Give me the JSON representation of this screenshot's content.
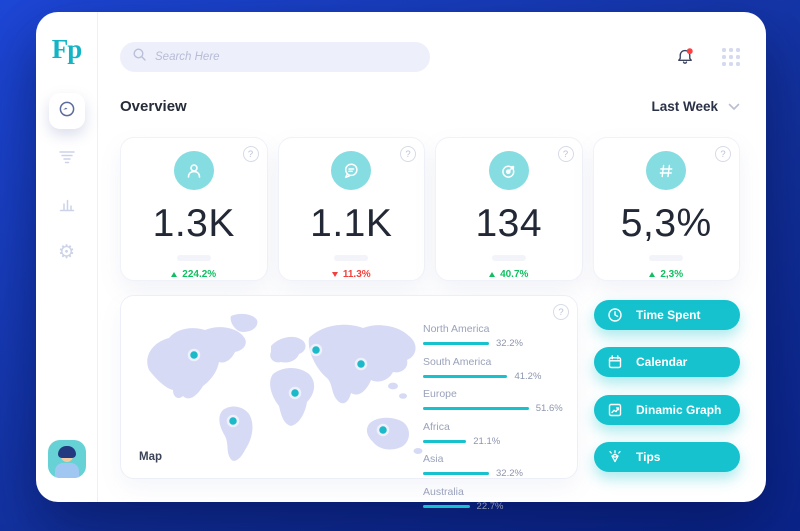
{
  "theme": {
    "bg_from": "#1d47d7",
    "bg_to": "#0a2489",
    "accent": "#15c2ce",
    "accent_light": "#85dce1",
    "green": "#0fbf61",
    "red": "#f4403c",
    "map_fill": "#d6daf5"
  },
  "sidebar": {
    "logo": "Fp",
    "items": [
      {
        "name": "dashboard",
        "active": true
      },
      {
        "name": "filter",
        "active": false
      },
      {
        "name": "analytics",
        "active": false
      },
      {
        "name": "settings",
        "active": false
      }
    ]
  },
  "topbar": {
    "search_placeholder": "Search Here"
  },
  "header": {
    "title": "Overview",
    "period": "Last Week"
  },
  "stats": [
    {
      "icon": "user-icon",
      "value": "1.3K",
      "change": "224.2%",
      "direction": "up"
    },
    {
      "icon": "chat-icon",
      "value": "1.1K",
      "change": "11.3%",
      "direction": "down"
    },
    {
      "icon": "target-icon",
      "value": "134",
      "change": "40.7%",
      "direction": "up"
    },
    {
      "icon": "hash-icon",
      "value": "5,3%",
      "change": "2,3%",
      "direction": "up"
    }
  ],
  "map": {
    "label": "Map",
    "regions": [
      {
        "name": "North America",
        "pct": 32.2,
        "pct_label": "32.2%"
      },
      {
        "name": "South America",
        "pct": 41.2,
        "pct_label": "41.2%"
      },
      {
        "name": "Europe",
        "pct": 51.6,
        "pct_label": "51.6%"
      },
      {
        "name": "Africa",
        "pct": 21.1,
        "pct_label": "21.1%"
      },
      {
        "name": "Asia",
        "pct": 32.2,
        "pct_label": "32.2%"
      },
      {
        "name": "Australia",
        "pct": 22.7,
        "pct_label": "22.7%"
      }
    ]
  },
  "actions": [
    {
      "icon": "clock-icon",
      "label": "Time Spent"
    },
    {
      "icon": "calendar-icon",
      "label": "Calendar"
    },
    {
      "icon": "graph-icon",
      "label": "Dinamic Graph"
    },
    {
      "icon": "gem-icon",
      "label": "Tips"
    }
  ]
}
